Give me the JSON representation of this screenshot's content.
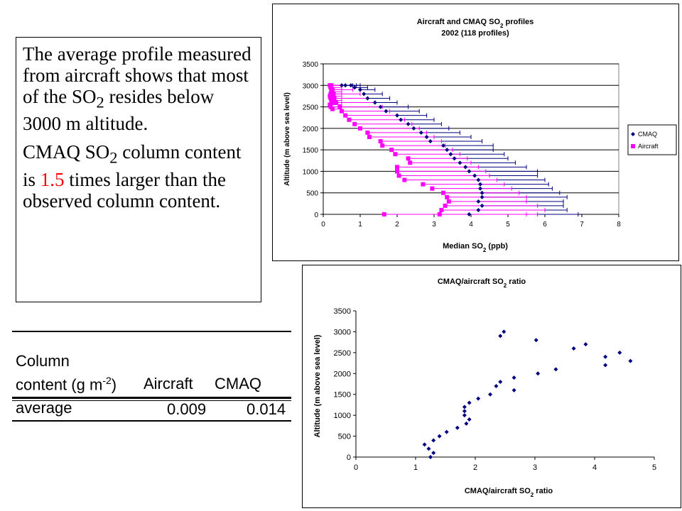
{
  "text_box": {
    "para1": {
      "pre": "The average profile measured from aircraft shows that most of the SO",
      "sub": "2",
      "post": " resides below 3000 m altitude."
    },
    "para2": {
      "pre": "CMAQ SO",
      "sub": "2",
      "mid": " column content is ",
      "highlight": "1.5",
      "post": " times larger than the observed column content."
    },
    "highlight_color": "#ff0000"
  },
  "table": {
    "header_line1": "Column",
    "header_line2_pre": "content (g m",
    "header_line2_sup": "-2",
    "header_line2_post": ")",
    "col_aircraft": "Aircraft",
    "col_cmaq": "CMAQ",
    "row_label": "average",
    "row_aircraft": "0.009",
    "row_cmaq": "0.014"
  },
  "chart_data": [
    {
      "type": "scatter",
      "title_line1_pre": "Aircraft and CMAQ SO",
      "title_line1_sub": "2",
      "title_line1_post": " profiles",
      "title_line2": "2002 (118 profiles)",
      "xlabel_pre": "Median SO",
      "xlabel_sub": "2",
      "xlabel_post": " (ppb)",
      "ylabel": "Altitude (m above sea level)",
      "xlim": [
        0,
        8
      ],
      "ylim": [
        0,
        3500
      ],
      "xticks": [
        "0",
        "1",
        "2",
        "3",
        "4",
        "5",
        "6",
        "7",
        "8"
      ],
      "yticks": [
        "0",
        "500",
        "1000",
        "1500",
        "2000",
        "2500",
        "3000",
        "3500"
      ],
      "grid": "horizontal",
      "legend_position": "right",
      "series": [
        {
          "name": "CMAQ",
          "color": "#000080",
          "marker": "diamond",
          "x": [
            3.95,
            4.2,
            4.3,
            4.2,
            4.3,
            4.3,
            4.25,
            4.25,
            4.2,
            4.1,
            3.95,
            3.85,
            3.7,
            3.55,
            3.45,
            3.35,
            3.25,
            2.9,
            2.8,
            2.65,
            2.45,
            2.3,
            2.1,
            2.0,
            1.7,
            1.55,
            1.4,
            1.2,
            1.1,
            1.0,
            0.85,
            0.75,
            0.6,
            0.5
          ],
          "y": [
            0,
            100,
            200,
            300,
            400,
            500,
            600,
            700,
            800,
            900,
            1000,
            1100,
            1200,
            1300,
            1400,
            1500,
            1600,
            1700,
            1800,
            1900,
            2000,
            2100,
            2200,
            2300,
            2400,
            2500,
            2600,
            2700,
            2800,
            2900,
            2950,
            3000,
            3000,
            3000
          ],
          "xerr_upper": [
            6.9,
            6.6,
            6.5,
            6.5,
            6.6,
            6.4,
            6.2,
            6.1,
            6.0,
            5.8,
            5.8,
            5.5,
            5.2,
            5.0,
            4.9,
            4.6,
            4.6,
            4.3,
            4.0,
            3.7,
            3.4,
            3.2,
            3.0,
            2.8,
            2.6,
            2.3,
            2.0,
            1.8,
            1.6,
            1.4,
            1.2,
            1.0,
            0.9,
            0.8
          ]
        },
        {
          "name": "Aircraft",
          "color": "#ff00ff",
          "marker": "square",
          "x": [
            1.65,
            3.15,
            3.2,
            3.3,
            3.4,
            3.35,
            3.25,
            2.95,
            2.7,
            2.2,
            2.05,
            2.0,
            2.0,
            2.35,
            2.3,
            1.95,
            1.85,
            1.6,
            1.55,
            1.25,
            1.2,
            1.0,
            0.85,
            0.7,
            0.6,
            0.5,
            0.45,
            0.35,
            0.3,
            0.28,
            0.25,
            0.22,
            0.2,
            0.18,
            0.2,
            0.25,
            0.22,
            0.2,
            0.18,
            0.2,
            0.22,
            0.25,
            0.18,
            0.2,
            0.25
          ],
          "y": [
            0,
            0,
            100,
            200,
            300,
            400,
            500,
            600,
            700,
            800,
            900,
            1000,
            1100,
            1200,
            1300,
            1400,
            1500,
            1600,
            1700,
            1800,
            1900,
            2000,
            2100,
            2200,
            2300,
            2400,
            2500,
            2600,
            2700,
            2800,
            2900,
            3000,
            3000,
            3000,
            2950,
            2900,
            2850,
            2800,
            2750,
            2700,
            2650,
            2600,
            2550,
            2500,
            2450
          ],
          "xerr_upper": [
            5.5,
            5.8,
            6.0,
            5.8,
            5.5,
            5.5,
            5.3,
            5.1,
            4.9,
            4.7,
            4.5,
            4.4,
            4.2,
            4.0,
            3.9,
            3.7,
            3.5,
            3.3,
            3.2,
            3.0,
            2.8,
            2.6,
            2.4,
            2.2,
            2.0,
            1.8,
            1.6,
            1.4,
            1.2,
            1.0,
            0.8,
            0.6,
            0.5,
            0.5,
            0.5,
            0.5,
            0.5,
            0.5,
            0.5,
            0.5,
            0.5,
            0.5,
            0.5,
            0.5,
            0.5
          ]
        }
      ]
    },
    {
      "type": "scatter",
      "title_pre": "CMAQ/aircraft SO",
      "title_sub": "2",
      "title_post": " ratio",
      "xlabel_pre": "CMAQ/aircraft SO",
      "xlabel_sub": "2",
      "xlabel_post": " ratio",
      "ylabel": "Altitude (m above sea level)",
      "xlim": [
        0,
        5
      ],
      "ylim": [
        0,
        3500
      ],
      "xticks": [
        "0",
        "1",
        "2",
        "3",
        "4",
        "5"
      ],
      "yticks": [
        "0",
        "500",
        "1000",
        "1500",
        "2000",
        "2500",
        "3000",
        "3500"
      ],
      "grid": "none",
      "series": [
        {
          "color": "#000080",
          "marker": "diamond",
          "x": [
            1.25,
            1.3,
            1.22,
            1.15,
            1.3,
            1.4,
            1.52,
            1.7,
            1.85,
            1.9,
            1.82,
            1.82,
            1.82,
            1.9,
            2.05,
            2.25,
            2.35,
            2.42,
            2.65,
            2.65,
            3.05,
            3.35,
            3.65,
            3.85,
            4.18,
            4.18,
            4.42,
            4.6,
            2.42,
            2.48,
            3.02
          ],
          "y": [
            0,
            100,
            200,
            300,
            400,
            500,
            600,
            700,
            800,
            900,
            1000,
            1100,
            1200,
            1300,
            1400,
            1500,
            1700,
            1800,
            1600,
            1900,
            2000,
            2100,
            2600,
            2700,
            2400,
            2200,
            2500,
            2300,
            2900,
            3000,
            2800
          ]
        }
      ]
    }
  ]
}
